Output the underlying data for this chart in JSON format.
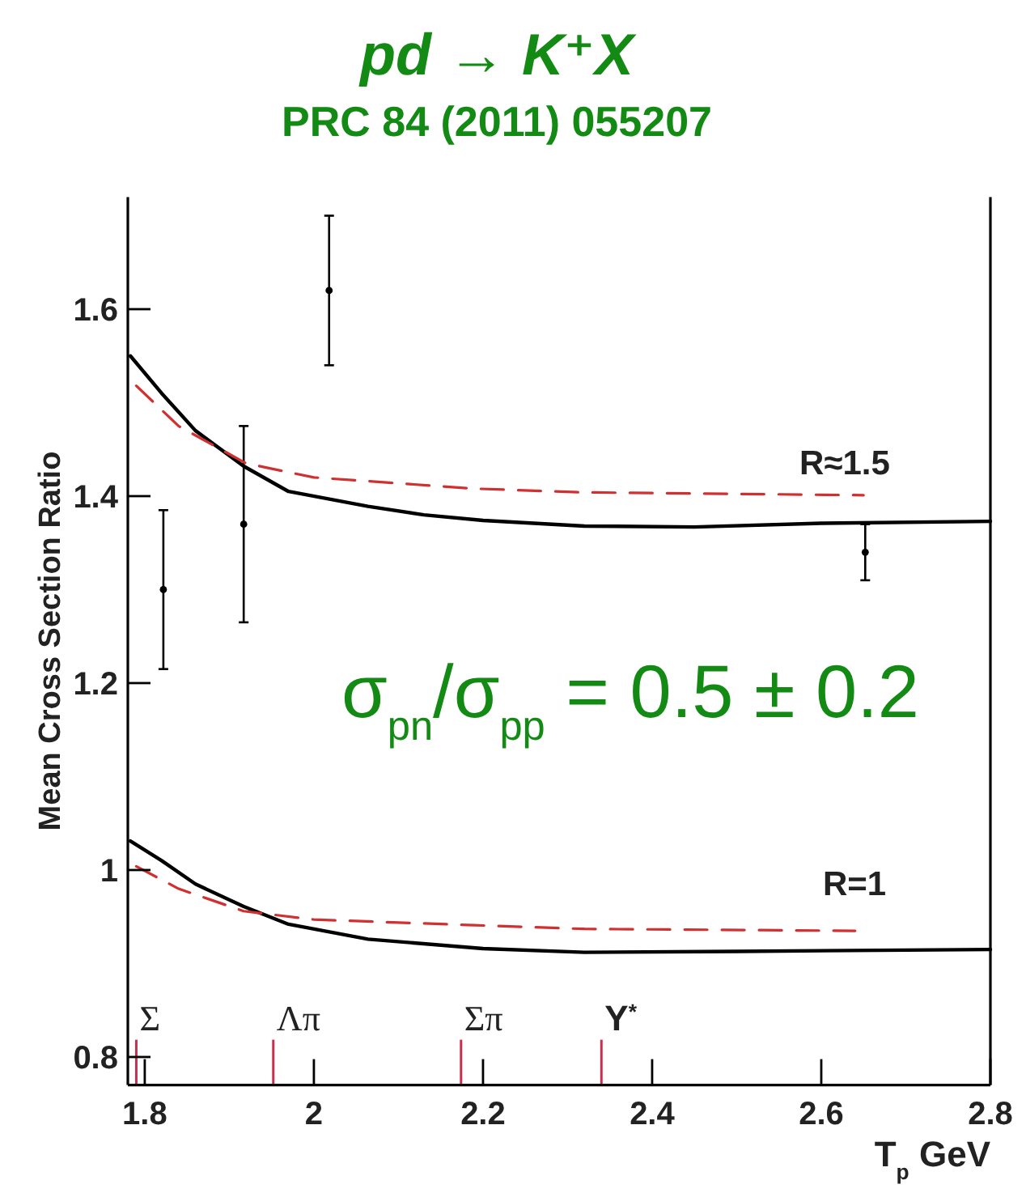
{
  "chart_data": {
    "type": "line",
    "title": "pd → K⁺X",
    "subtitle": "PRC 84 (2011) 055207",
    "xlabel": "T$_{p}$ GeV",
    "ylabel": "Mean Cross Section Ratio",
    "xlim": [
      1.78,
      2.8
    ],
    "xticks": [
      1.8,
      2,
      2.2,
      2.4,
      2.6,
      2.8
    ],
    "ylim": [
      0.77,
      1.72
    ],
    "yticks": [
      0.8,
      1,
      1.2,
      1.4,
      1.6
    ],
    "grid": false,
    "series": [
      {
        "type": "scatter",
        "color": "#000000",
        "marker": "circle",
        "x": [
          1.822,
          1.917,
          2.018,
          2.652
        ],
        "values": [
          1.3,
          1.37,
          1.62,
          1.34
        ],
        "errors": [
          0.085,
          0.105,
          0.08,
          0.03
        ]
      },
      {
        "color": "#000000",
        "line_style": "solid",
        "x": [
          1.783,
          1.82,
          1.86,
          1.917,
          1.97,
          2.064,
          2.13,
          2.2,
          2.32,
          2.45,
          2.6,
          2.8
        ],
        "values": [
          1.55,
          1.51,
          1.47,
          1.432,
          1.405,
          1.389,
          1.38,
          1.374,
          1.368,
          1.367,
          1.371,
          1.373
        ]
      },
      {
        "color": "#d03030",
        "line_style": "dashed",
        "x": [
          1.79,
          1.84,
          1.92,
          2.0,
          2.19,
          2.32,
          2.65
        ],
        "values": [
          1.518,
          1.475,
          1.435,
          1.42,
          1.408,
          1.404,
          1.401
        ]
      },
      {
        "color": "#000000",
        "line_style": "solid",
        "x": [
          1.783,
          1.82,
          1.86,
          1.917,
          1.97,
          2.064,
          2.2,
          2.32,
          2.5,
          2.8
        ],
        "values": [
          1.031,
          1.01,
          0.985,
          0.961,
          0.942,
          0.926,
          0.916,
          0.912,
          0.913,
          0.915
        ]
      },
      {
        "color": "#d03030",
        "line_style": "dashed",
        "x": [
          1.79,
          1.84,
          1.917,
          2.0,
          2.19,
          2.32,
          2.64
        ],
        "values": [
          1.004,
          0.98,
          0.956,
          0.947,
          0.941,
          0.937,
          0.935
        ]
      }
    ],
    "ref_lines": [
      {
        "axis": "x",
        "value": 1.79,
        "label": "Σ",
        "color": "#c83050"
      },
      {
        "axis": "x",
        "value": 1.952,
        "label": "Λπ",
        "color": "#c83050"
      },
      {
        "axis": "x",
        "value": 2.174,
        "label": "Σπ",
        "color": "#c83050"
      },
      {
        "axis": "x",
        "value": 2.34,
        "label": "Y$^{*}$",
        "color": "#c83050"
      }
    ],
    "annotations": [
      "R≈1.5",
      "R=1",
      "σ$_{pn}$/σ$_{pp}$ = 0.5 ± 0.2"
    ]
  }
}
